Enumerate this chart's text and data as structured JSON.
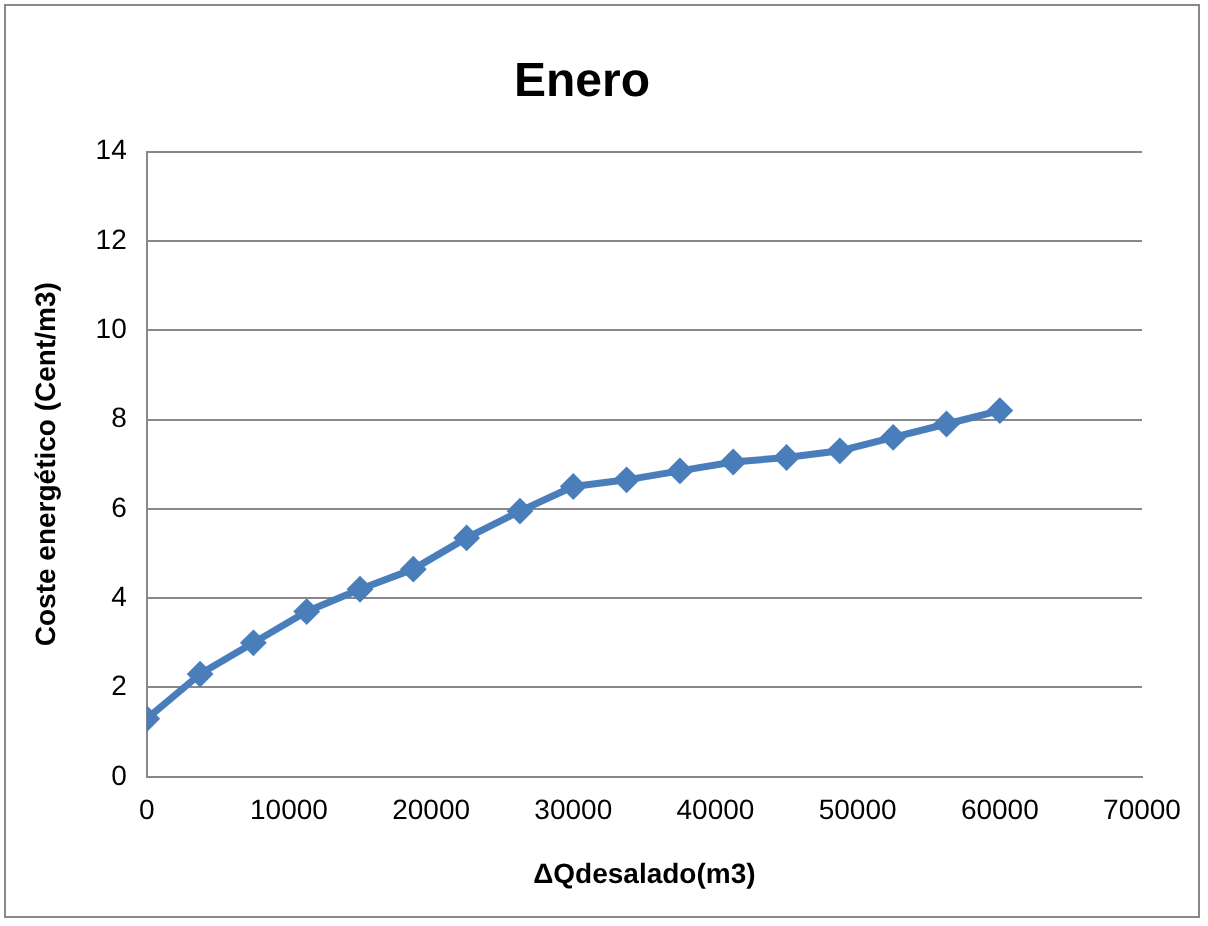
{
  "chart_data": {
    "type": "line",
    "title": "Enero",
    "xlabel": "ΔQdesalado(m3)",
    "ylabel": "Coste energético (Cent/m3)",
    "x": [
      0,
      3750,
      7500,
      11250,
      15000,
      18750,
      22500,
      26250,
      30000,
      33750,
      37500,
      41250,
      45000,
      48750,
      52500,
      56250,
      60000
    ],
    "series": [
      {
        "color": "#4a7ebb",
        "values": [
          1.3,
          2.3,
          3.0,
          3.7,
          4.2,
          4.65,
          5.35,
          5.95,
          6.5,
          6.65,
          6.85,
          7.05,
          7.15,
          7.3,
          7.6,
          7.9,
          8.2
        ]
      }
    ],
    "xlim": [
      0,
      70000
    ],
    "xticks": [
      0,
      10000,
      20000,
      30000,
      40000,
      50000,
      60000,
      70000
    ],
    "ylim": [
      0,
      14
    ],
    "yticks": [
      0,
      2,
      4,
      6,
      8,
      10,
      12,
      14
    ],
    "grid": "y",
    "legend": false,
    "marker": "diamond",
    "line_style": "solid"
  }
}
